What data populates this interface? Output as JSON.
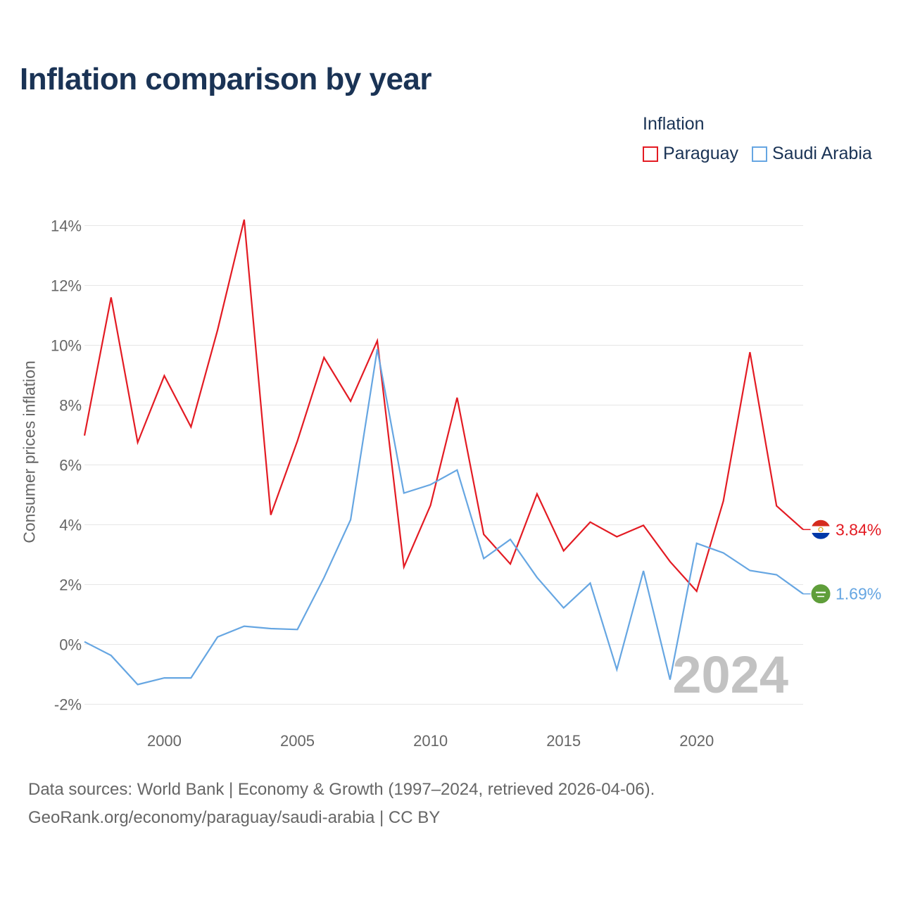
{
  "title": "Inflation comparison by year",
  "legend": {
    "title": "Inflation",
    "items": [
      {
        "label": "Paraguay",
        "color": "#e31b23"
      },
      {
        "label": "Saudi Arabia",
        "color": "#66a6e2"
      }
    ]
  },
  "footer": {
    "line1": "Data sources: World Bank | Economy & Growth (1997–2024, retrieved 2026-04-06).",
    "line2": "GeoRank.org/economy/paraguay/saudi-arabia | CC BY"
  },
  "chart_data": {
    "type": "line",
    "title": "Inflation comparison by year",
    "xlabel": "",
    "ylabel": "Consumer prices inflation",
    "xlim": [
      1997,
      2024
    ],
    "ylim": [
      -2,
      14
    ],
    "grid": true,
    "x_ticks": [
      2000,
      2005,
      2010,
      2015,
      2020
    ],
    "y_ticks": [
      {
        "value": 14,
        "label": "14%"
      },
      {
        "value": 12,
        "label": "12%"
      },
      {
        "value": 10,
        "label": "10%"
      },
      {
        "value": 8,
        "label": "8%"
      },
      {
        "value": 6,
        "label": "6%"
      },
      {
        "value": 4,
        "label": "4%"
      },
      {
        "value": 2,
        "label": "2%"
      },
      {
        "value": 0,
        "label": "0%"
      },
      {
        "value": -2,
        "label": "-2%"
      }
    ],
    "year_watermark": "2024",
    "x": [
      1997,
      1998,
      1999,
      2000,
      2001,
      2002,
      2003,
      2004,
      2005,
      2006,
      2007,
      2008,
      2009,
      2010,
      2011,
      2012,
      2013,
      2014,
      2015,
      2016,
      2017,
      2018,
      2019,
      2020,
      2021,
      2022,
      2023,
      2024
    ],
    "series": [
      {
        "name": "Paraguay",
        "color": "#e31b23",
        "end_label": "3.84%",
        "flag": "paraguay-flag",
        "values": [
          6.98,
          11.6,
          6.75,
          8.98,
          7.27,
          10.51,
          14.2,
          4.33,
          6.8,
          9.59,
          8.13,
          10.15,
          2.59,
          4.65,
          8.25,
          3.68,
          2.69,
          5.03,
          3.13,
          4.09,
          3.6,
          3.98,
          2.77,
          1.78,
          4.79,
          9.77,
          4.63,
          3.84
        ]
      },
      {
        "name": "Saudi Arabia",
        "color": "#66a6e2",
        "end_label": "1.69%",
        "flag": "saudi-arabia-flag",
        "values": [
          0.09,
          -0.37,
          -1.34,
          -1.12,
          -1.12,
          0.25,
          0.61,
          0.53,
          0.5,
          2.23,
          4.17,
          9.87,
          5.06,
          5.34,
          5.83,
          2.87,
          3.51,
          2.24,
          1.22,
          2.05,
          -0.84,
          2.46,
          -1.18,
          3.38,
          3.06,
          2.47,
          2.33,
          1.69
        ]
      }
    ]
  }
}
